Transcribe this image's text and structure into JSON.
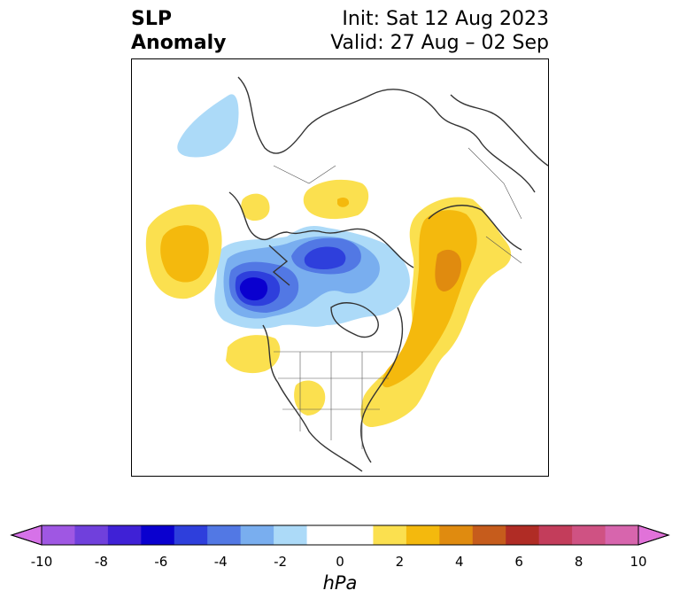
{
  "title": {
    "left_line1": "SLP",
    "left_line2": "Anomaly",
    "right_line1": "Init: Sat 12 Aug 2023",
    "right_line2": "Valid: 27 Aug – 02 Sep"
  },
  "colorbar": {
    "unit": "hPa",
    "ticks": [
      "-10",
      "-8",
      "-6",
      "-4",
      "-2",
      "0",
      "2",
      "4",
      "6",
      "8",
      "10"
    ],
    "colors": [
      "#d672e8",
      "#9f57e3",
      "#7040dc",
      "#3f21d6",
      "#0a00cf",
      "#2e3fdc",
      "#5278e4",
      "#79aeef",
      "#acdaf8",
      "#ffffff",
      "#ffffff",
      "#fbe04f",
      "#f4b90d",
      "#e08b0f",
      "#c65c1c",
      "#b02c25",
      "#c33d5b",
      "#cf5283",
      "#d765ad",
      "#e172d9"
    ]
  }
}
